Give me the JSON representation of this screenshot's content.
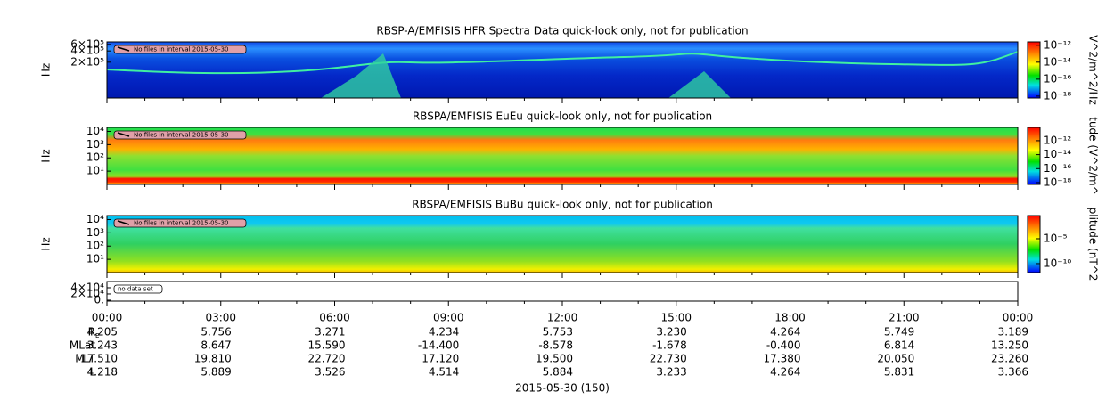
{
  "chart_data": [
    {
      "type": "spectrogram",
      "title": "RBSP-A/EMFISIS  HFR Spectra Data quick-look only, not for publication",
      "ylabel": "Hz",
      "log": true,
      "ylim": [
        22000,
        700000
      ],
      "yticks": [
        {
          "value": 600000,
          "label": "6×10⁵"
        },
        {
          "value": 400000,
          "label": "4×10⁵"
        },
        {
          "value": 200000,
          "label": "2×10⁵"
        }
      ],
      "note": "No files in interval 2015-05-30",
      "colorbar_label": "V^2/m^2/Hz",
      "zlim": [
        6e-19,
        2.5e-12
      ],
      "zticks": [
        {
          "value": 1e-12,
          "label": "10⁻¹²"
        },
        {
          "value": 1e-14,
          "label": "10⁻¹⁴"
        },
        {
          "value": 1e-16,
          "label": "10⁻¹⁶"
        },
        {
          "value": 1e-18,
          "label": "10⁻¹⁸"
        }
      ]
    },
    {
      "type": "spectrogram",
      "title": "RBSPA/EMFISIS  EuEu quick-look only, not for publication",
      "ylabel": "Hz",
      "log": true,
      "ylim": [
        1,
        20000
      ],
      "yticks": [
        {
          "value": 10000,
          "label": "10⁴"
        },
        {
          "value": 1000,
          "label": "10³"
        },
        {
          "value": 100,
          "label": "10²"
        },
        {
          "value": 10,
          "label": "10¹"
        }
      ],
      "note": "No files in interval 2015-05-30",
      "colorbar_label": "tude (V^2/m^",
      "zlim": [
        5.5e-19,
        8e-11
      ],
      "zticks": [
        {
          "value": 1e-12,
          "label": "10⁻¹²"
        },
        {
          "value": 1e-14,
          "label": "10⁻¹⁴"
        },
        {
          "value": 1e-16,
          "label": "10⁻¹⁶"
        },
        {
          "value": 1e-18,
          "label": "10⁻¹⁸"
        }
      ]
    },
    {
      "type": "spectrogram",
      "title": "RBSPA/EMFISIS  BuBu quick-look only, not for publication",
      "ylabel": "Hz",
      "log": true,
      "ylim": [
        1,
        20000
      ],
      "yticks": [
        {
          "value": 10000,
          "label": "10⁴"
        },
        {
          "value": 1000,
          "label": "10³"
        },
        {
          "value": 100,
          "label": "10²"
        },
        {
          "value": 10,
          "label": "10¹"
        }
      ],
      "note": "No files in interval 2015-05-30",
      "colorbar_label": "plitude (nT^2",
      "zlim": [
        1.6e-12,
        0.44
      ],
      "zticks": [
        {
          "value": 1e-05,
          "label": "10⁻⁵"
        },
        {
          "value": 1e-10,
          "label": "10⁻¹⁰"
        }
      ]
    },
    {
      "type": "empty",
      "log": false,
      "ylim": [
        -3000,
        60000
      ],
      "yticks": [
        {
          "value": 40000,
          "label": "4×10⁴"
        },
        {
          "value": 20000,
          "label": "2×10⁴"
        },
        {
          "value": 0,
          "label": "0."
        }
      ],
      "note": "no data set"
    }
  ],
  "time_axis": {
    "categories": [
      "00:00",
      "03:00",
      "06:00",
      "09:00",
      "12:00",
      "15:00",
      "18:00",
      "21:00",
      "00:00"
    ],
    "date": "2015-05-30 (150)"
  },
  "ephemeris": [
    {
      "label": "R",
      "sub": "E",
      "values": [
        "4.205",
        "5.756",
        "3.271",
        "4.234",
        "5.753",
        "3.230",
        "4.264",
        "5.749",
        "3.189"
      ]
    },
    {
      "label": "MLat",
      "values": [
        "3.243",
        "8.647",
        "15.590",
        "-14.400",
        "-8.578",
        "-1.678",
        "-0.400",
        "6.814",
        "13.250"
      ]
    },
    {
      "label": "MLT",
      "values": [
        "17.510",
        "19.810",
        "22.720",
        "17.120",
        "19.500",
        "22.730",
        "17.380",
        "20.050",
        "23.260"
      ]
    },
    {
      "label": "L",
      "values": [
        "4.218",
        "5.889",
        "3.526",
        "4.514",
        "5.884",
        "3.233",
        "4.264",
        "5.831",
        "3.366"
      ]
    }
  ]
}
